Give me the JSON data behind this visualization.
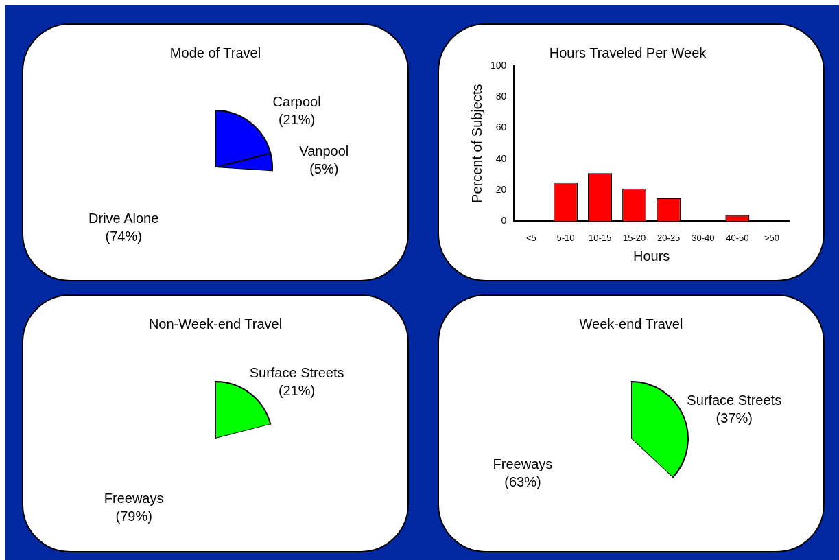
{
  "chart_data": [
    {
      "type": "pie",
      "title": "Mode of Travel",
      "categories": [
        "Carpool",
        "Vanpool",
        "Drive Alone"
      ],
      "values": [
        21,
        5,
        74
      ],
      "colors": [
        "#0000ff",
        "#0000ff",
        "#ffffff"
      ],
      "value_labels": [
        "(21%)",
        "(5%)",
        "(74%)"
      ],
      "legend": false
    },
    {
      "type": "bar",
      "title": "Hours Traveled Per Week",
      "xlabel": "Hours",
      "ylabel": "Percent of Subjects",
      "categories": [
        "<5",
        "5-10",
        "10-15",
        "15-20",
        "20-25",
        "30-40",
        "40-50",
        ">50"
      ],
      "values": [
        0,
        25,
        31,
        21,
        15,
        0,
        4,
        0
      ],
      "color": "#ff0000",
      "ylim": [
        0,
        100
      ],
      "yticks": [
        0,
        20,
        40,
        60,
        80,
        100
      ],
      "grid": false,
      "legend": false
    },
    {
      "type": "pie",
      "title": "Non-Week-end Travel",
      "categories": [
        "Surface Streets",
        "Freeways"
      ],
      "values": [
        21,
        79
      ],
      "colors": [
        "#00ff00",
        "#ffffff"
      ],
      "value_labels": [
        "(21%)",
        "(79%)"
      ],
      "legend": false
    },
    {
      "type": "pie",
      "title": "Week-end Travel",
      "categories": [
        "Surface Streets",
        "Freeways"
      ],
      "values": [
        37,
        63
      ],
      "colors": [
        "#00ff00",
        "#ffffff"
      ],
      "value_labels": [
        "(37%)",
        "(63%)"
      ],
      "legend": false
    }
  ]
}
